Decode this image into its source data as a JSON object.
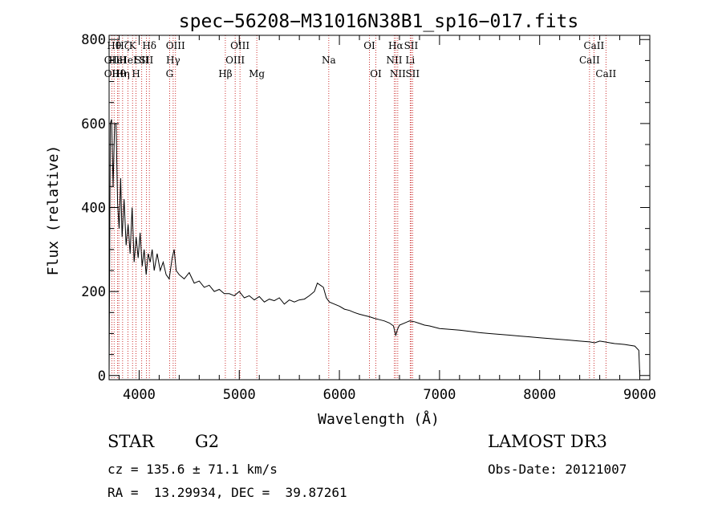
{
  "chart_data": {
    "type": "line",
    "title": "spec−56208−M31016N38B1_sp16−017.fits",
    "xlabel": "Wavelength (Å)",
    "ylabel": "Flux (relative)",
    "xlim": [
      3700,
      9100
    ],
    "ylim": [
      -10,
      810
    ],
    "xticks": [
      4000,
      5000,
      6000,
      7000,
      8000,
      9000
    ],
    "yticks": [
      0,
      200,
      400,
      600,
      800
    ],
    "series": [
      {
        "name": "spectrum",
        "x": [
          3700,
          3712,
          3725,
          3740,
          3755,
          3770,
          3785,
          3800,
          3815,
          3830,
          3850,
          3870,
          3890,
          3910,
          3930,
          3950,
          3970,
          3990,
          4010,
          4030,
          4050,
          4070,
          4090,
          4110,
          4130,
          4150,
          4180,
          4210,
          4240,
          4270,
          4300,
          4330,
          4350,
          4370,
          4400,
          4450,
          4500,
          4550,
          4600,
          4650,
          4700,
          4750,
          4800,
          4850,
          4900,
          4950,
          5000,
          5050,
          5100,
          5150,
          5200,
          5250,
          5300,
          5350,
          5400,
          5450,
          5500,
          5550,
          5600,
          5650,
          5700,
          5750,
          5780,
          5810,
          5840,
          5870,
          5900,
          5950,
          6000,
          6050,
          6100,
          6150,
          6200,
          6250,
          6300,
          6350,
          6400,
          6450,
          6500,
          6540,
          6563,
          6580,
          6600,
          6650,
          6700,
          6750,
          6800,
          6850,
          6900,
          6950,
          7000,
          7100,
          7200,
          7300,
          7400,
          7500,
          7600,
          7700,
          7800,
          7900,
          8000,
          8100,
          8200,
          8300,
          8400,
          8500,
          8550,
          8600,
          8650,
          8700,
          8750,
          8800,
          8850,
          8900,
          8950,
          8990,
          9000
        ],
        "y": [
          0,
          600,
          610,
          450,
          600,
          600,
          410,
          350,
          470,
          330,
          420,
          310,
          360,
          290,
          400,
          270,
          330,
          280,
          340,
          260,
          300,
          240,
          290,
          270,
          300,
          250,
          290,
          250,
          270,
          240,
          230,
          280,
          300,
          250,
          240,
          230,
          245,
          220,
          225,
          210,
          215,
          200,
          205,
          195,
          195,
          190,
          200,
          185,
          190,
          180,
          188,
          175,
          182,
          178,
          185,
          170,
          180,
          175,
          180,
          182,
          190,
          200,
          220,
          215,
          210,
          185,
          175,
          170,
          165,
          158,
          155,
          150,
          146,
          143,
          140,
          136,
          133,
          130,
          125,
          118,
          95,
          110,
          120,
          125,
          130,
          128,
          124,
          120,
          118,
          115,
          112,
          110,
          108,
          105,
          102,
          100,
          98,
          96,
          94,
          92,
          90,
          88,
          86,
          84,
          82,
          80,
          78,
          82,
          80,
          78,
          76,
          75,
          74,
          72,
          70,
          60,
          2
        ]
      }
    ],
    "line_markers": [
      {
        "wl": 3727,
        "label": "OII",
        "row": 2
      },
      {
        "wl": 3727,
        "label": "OII",
        "row": 3
      },
      {
        "wl": 3750,
        "label": "Hθ",
        "row": 1
      },
      {
        "wl": 3785,
        "label": "HeI",
        "row": 2
      },
      {
        "wl": 3797,
        "label": "Hθ",
        "row": 3
      },
      {
        "wl": 3835,
        "label": "Hη",
        "row": 3
      },
      {
        "wl": 3835,
        "label": "Hζ",
        "row": 1
      },
      {
        "wl": 3889,
        "label": "HeI",
        "row": 2
      },
      {
        "wl": 3934,
        "label": "K",
        "row": 1
      },
      {
        "wl": 3969,
        "label": "H",
        "row": 3
      },
      {
        "wl": 4026,
        "label": "SII",
        "row": 2
      },
      {
        "wl": 4072,
        "label": "SII",
        "row": 2
      },
      {
        "wl": 4102,
        "label": "Hδ",
        "row": 1
      },
      {
        "wl": 4304,
        "label": "G",
        "row": 3
      },
      {
        "wl": 4340,
        "label": "Hγ",
        "row": 2
      },
      {
        "wl": 4363,
        "label": "OIII",
        "row": 1
      },
      {
        "wl": 4861,
        "label": "Hβ",
        "row": 3
      },
      {
        "wl": 4959,
        "label": "OIII",
        "row": 2
      },
      {
        "wl": 5007,
        "label": "OIII",
        "row": 1
      },
      {
        "wl": 5175,
        "label": "Mg",
        "row": 3
      },
      {
        "wl": 5894,
        "label": "Na",
        "row": 2
      },
      {
        "wl": 6300,
        "label": "OI",
        "row": 1
      },
      {
        "wl": 6364,
        "label": "OI",
        "row": 3
      },
      {
        "wl": 6548,
        "label": "NII",
        "row": 2
      },
      {
        "wl": 6563,
        "label": "Hα",
        "row": 1
      },
      {
        "wl": 6583,
        "label": "NII",
        "row": 3
      },
      {
        "wl": 6707,
        "label": "Li",
        "row": 2
      },
      {
        "wl": 6716,
        "label": "SII",
        "row": 1
      },
      {
        "wl": 6731,
        "label": "SII",
        "row": 3
      },
      {
        "wl": 8498,
        "label": "CaII",
        "row": 2
      },
      {
        "wl": 8542,
        "label": "CaII",
        "row": 1
      },
      {
        "wl": 8662,
        "label": "CaII",
        "row": 3
      }
    ],
    "marker_color": "#c00000"
  },
  "info": {
    "class_type": "STAR",
    "subclass": "G2",
    "survey": "LAMOST DR3",
    "cz": "cz = 135.6 ± 71.1 km/s",
    "obs_date": "Obs-Date: 20121007",
    "coords": "RA =  13.29934, DEC =  39.87261"
  }
}
